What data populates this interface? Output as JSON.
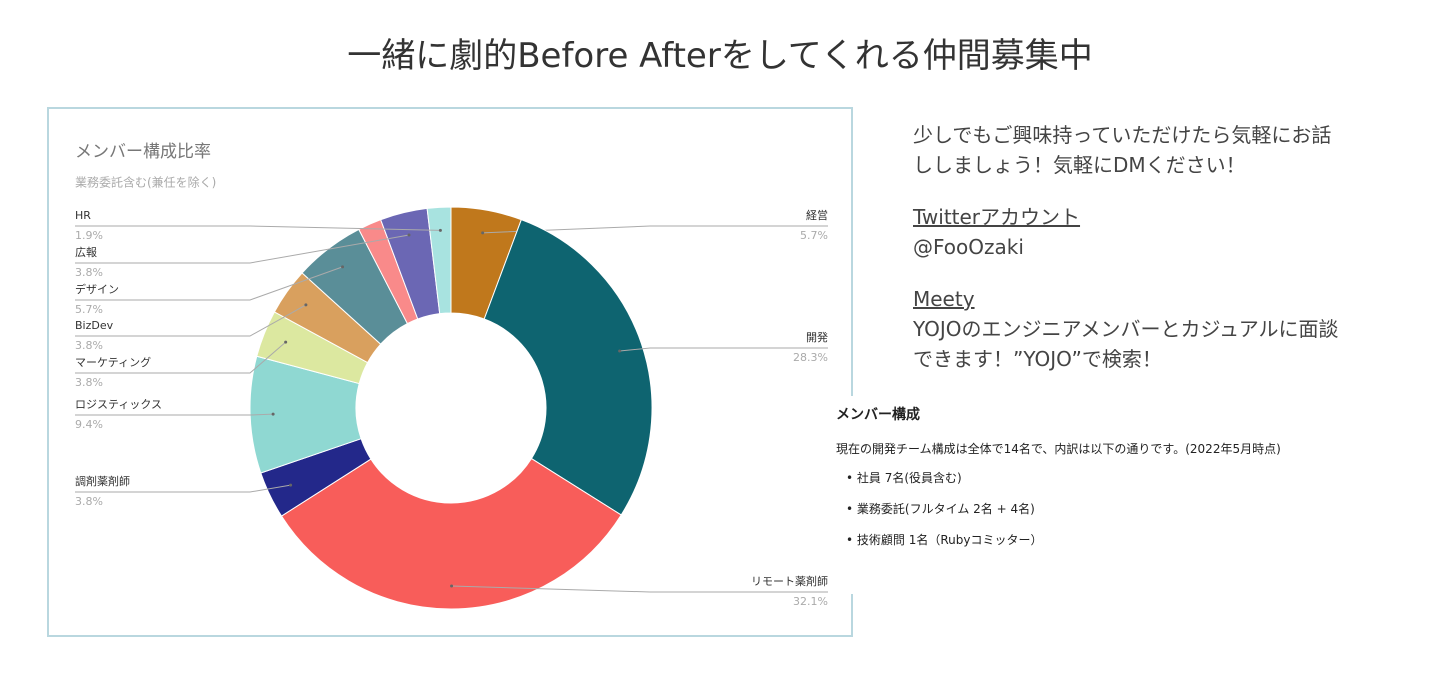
{
  "slide": {
    "title": "一緒に劇的Before Afterをしてくれる仲間募集中",
    "message": [
      "少しでもご興味持っていただけたら気軽にお話",
      "ししましょう！気軽にDMください！"
    ],
    "twitter_heading": "Twitterアカウント",
    "twitter_handle": "@FooOzaki",
    "meety_heading": "Meety",
    "meety_text": [
      "YOJOのエンジニアメンバーとカジュアルに面談",
      "できます！”YOJO”で検索！"
    ]
  },
  "inset": {
    "title": "メンバー構成",
    "text": "現在の開発チーム構成は全体で14名で、内訳は以下の通りです。(2022年5月時点)",
    "bullets": [
      "社員 7名(役員含む)",
      "業務委託(フルタイム 2名 + 4名)",
      "技術顧問 1名（Rubyコミッター）"
    ]
  },
  "chart_data": {
    "type": "pie",
    "title": "メンバー構成比率",
    "subtitle": "業務委託含む(兼任を除く)",
    "categories": [
      "経営",
      "開発",
      "リモート薬剤師",
      "調剤薬剤師",
      "ロジスティックス",
      "マーケティング",
      "BizDev",
      "デザイン",
      null,
      "広報",
      "HR"
    ],
    "values": [
      5.7,
      28.3,
      32.1,
      3.8,
      9.4,
      3.8,
      3.8,
      5.7,
      1.9,
      3.8,
      1.9
    ],
    "value_labels": [
      "5.7%",
      "28.3%",
      "32.1%",
      "3.8%",
      "9.4%",
      "3.8%",
      "3.8%",
      "5.7%",
      null,
      "3.8%",
      "1.9%"
    ],
    "colors": [
      "#c0781c",
      "#0e6470",
      "#f85d5a",
      "#23288a",
      "#8fd8d2",
      "#dce8a0",
      "#d9a05e",
      "#5a8e98",
      "#f98a8a",
      "#6b67b4",
      "#a8e3e0"
    ]
  }
}
